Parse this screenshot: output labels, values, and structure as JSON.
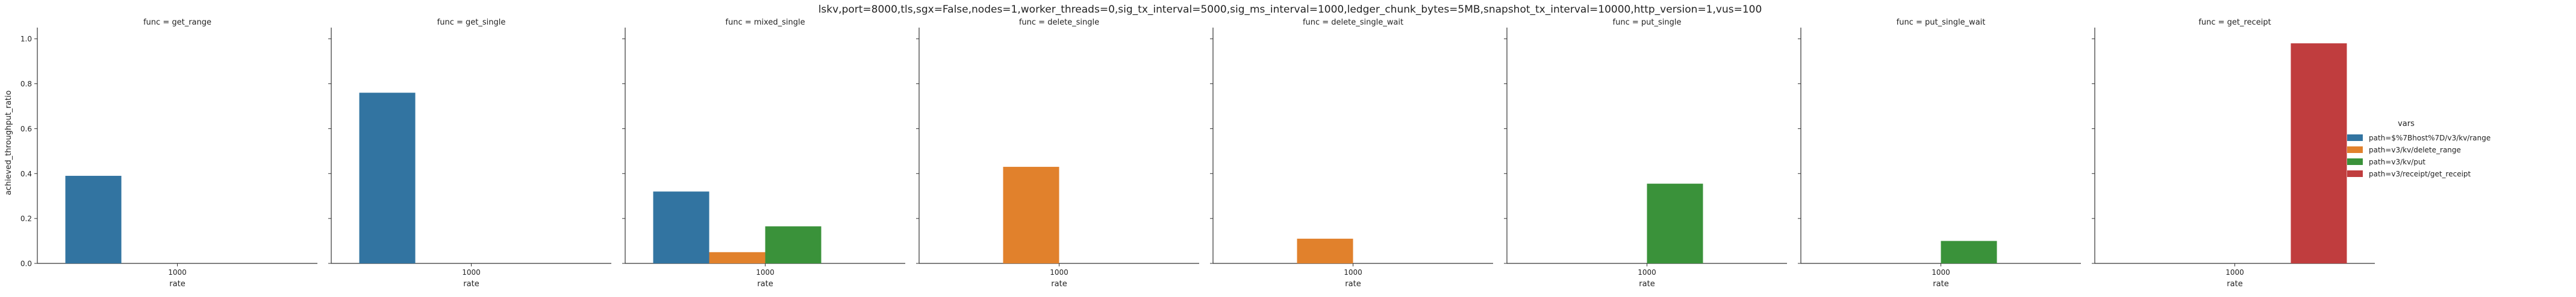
{
  "figure": {
    "suptitle": "lskv,port=8000,tls,sgx=False,nodes=1,worker_threads=0,sig_tx_interval=5000,sig_ms_interval=1000,ledger_chunk_bytes=5MB,snapshot_tx_interval=10000,http_version=1,vus=100"
  },
  "chart_data": {
    "type": "bar",
    "ylabel": "achieved_throughput_ratio",
    "xlabel": "rate",
    "ylim": [
      0,
      1.05
    ],
    "yticks": [
      "0.0",
      "0.2",
      "0.4",
      "0.6",
      "0.8",
      "1.0"
    ],
    "categories": [
      "1000"
    ],
    "legend": {
      "title": "vars",
      "placement": "right",
      "items": [
        {
          "label": "path=$%7Bhost%7D/v3/kv/range",
          "color": "#3274a1"
        },
        {
          "label": "path=v3/kv/delete_range",
          "color": "#e1812c"
        },
        {
          "label": "path=v3/kv/put",
          "color": "#3a923a"
        },
        {
          "label": "path=v3/receipt/get_receipt",
          "color": "#c03d3e"
        }
      ]
    },
    "panels": [
      {
        "title": "func = get_range",
        "values": [
          0.39,
          null,
          null,
          null
        ]
      },
      {
        "title": "func = get_single",
        "values": [
          0.76,
          null,
          null,
          null
        ]
      },
      {
        "title": "func = mixed_single",
        "values": [
          0.32,
          0.05,
          0.165,
          null
        ]
      },
      {
        "title": "func = delete_single",
        "values": [
          null,
          0.43,
          null,
          null
        ]
      },
      {
        "title": "func = delete_single_wait",
        "values": [
          null,
          0.11,
          null,
          null
        ]
      },
      {
        "title": "func = put_single",
        "values": [
          null,
          null,
          0.355,
          null
        ]
      },
      {
        "title": "func = put_single_wait",
        "values": [
          null,
          null,
          0.1,
          null
        ]
      },
      {
        "title": "func = get_receipt",
        "values": [
          null,
          null,
          null,
          0.98
        ]
      }
    ]
  }
}
